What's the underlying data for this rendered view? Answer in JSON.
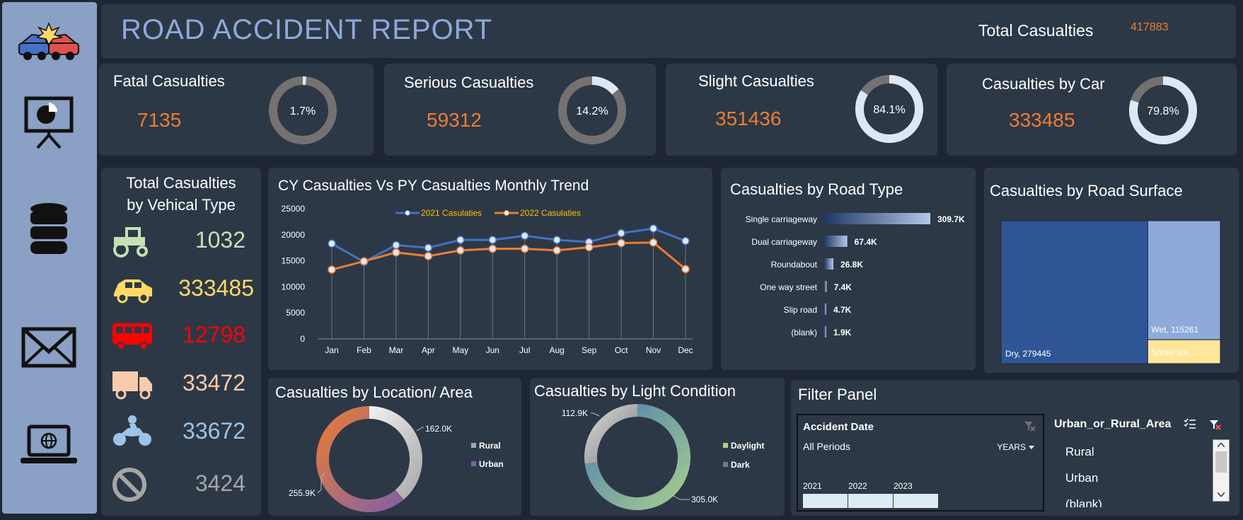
{
  "header": {
    "title": "ROAD ACCIDENT REPORT",
    "total_label": "Total Casualties",
    "total_value": "417883"
  },
  "kpis": [
    {
      "label": "Fatal Casualties",
      "value": "7135",
      "pct_label": "1.7%",
      "pct": 0.017
    },
    {
      "label": "Serious Casualties",
      "value": "59312",
      "pct_label": "14.2%",
      "pct": 0.142
    },
    {
      "label": "Slight Casualties",
      "value": "351436",
      "pct_label": "84.1%",
      "pct": 0.841
    },
    {
      "label": "Casualties by Car",
      "value": "333485",
      "pct_label": "79.8%",
      "pct": 0.798
    }
  ],
  "vehicle": {
    "title_line1": "Total Casualties",
    "title_line2": "by Vehical Type",
    "items": [
      {
        "icon": "tractor-icon",
        "value": "1032",
        "color": "#c5e0b4"
      },
      {
        "icon": "car-icon",
        "value": "333485",
        "color": "#ffd966"
      },
      {
        "icon": "bus-icon",
        "value": "12798",
        "color": "#ff0000"
      },
      {
        "icon": "van-icon",
        "value": "33472",
        "color": "#f8cbad"
      },
      {
        "icon": "motorcycle-icon",
        "value": "33672",
        "color": "#9dc3e6"
      },
      {
        "icon": "no-icon",
        "value": "3424",
        "color": "#a6a6a6"
      }
    ]
  },
  "chart_data": [
    {
      "type": "line",
      "title": "CY Casualties Vs PY Casualties Monthly Trend",
      "categories": [
        "Jan",
        "Feb",
        "Mar",
        "Apr",
        "May",
        "Jun",
        "Jul",
        "Aug",
        "Sep",
        "Oct",
        "Nov",
        "Dec"
      ],
      "series": [
        {
          "name": "2021 Casulaties",
          "color": "#4472c4",
          "values": [
            18300,
            14800,
            18000,
            17500,
            19000,
            19000,
            19800,
            19000,
            18600,
            20300,
            21200,
            18800
          ]
        },
        {
          "name": "2022 Casulaties",
          "color": "#ed7d31",
          "values": [
            13300,
            14900,
            16600,
            15900,
            17000,
            17300,
            17300,
            17000,
            17600,
            18400,
            18500,
            13400
          ]
        }
      ],
      "yticks": [
        "0",
        "5000",
        "10000",
        "15000",
        "20000",
        "25000"
      ],
      "ylim": [
        0,
        25000
      ],
      "legend": "top"
    },
    {
      "type": "bar",
      "title": "Casualties by Road Type",
      "categories": [
        "Single carriageway",
        "Dual carriageway",
        "Roundabout",
        "One way street",
        "Slip road",
        "(blank)"
      ],
      "values": [
        309.7,
        67.4,
        26.8,
        7.4,
        4.7,
        1.9
      ],
      "labels": [
        "309.7K",
        "67.4K",
        "26.8K",
        "7.4K",
        "4.7K",
        "1.9K"
      ],
      "orientation": "horizontal"
    },
    {
      "type": "treemap",
      "title": "Casualties by Road Surface",
      "items": [
        {
          "label": "Dry, 279445",
          "value": 279445,
          "color": "#2f5597"
        },
        {
          "label": "Wet, 115261",
          "value": 115261,
          "color": "#8eaadb"
        },
        {
          "label": "Snow/ Ice,...",
          "value": 23177,
          "color": "#ffe699"
        }
      ]
    },
    {
      "type": "pie",
      "title": "Casualties by Location/ Area",
      "slices": [
        {
          "name": "Rural",
          "value": 162.0,
          "label": "162.0K"
        },
        {
          "name": "Urban",
          "value": 255.9,
          "label": "255.9K"
        }
      ],
      "legend": "right"
    },
    {
      "type": "pie",
      "title": "Casualties by Light Condition",
      "slices": [
        {
          "name": "Daylight",
          "value": 305.0,
          "label": "305.0K"
        },
        {
          "name": "Dark",
          "value": 112.9,
          "label": "112.9K"
        }
      ],
      "legend": "right"
    }
  ],
  "filter": {
    "title": "Filter Panel",
    "date": {
      "title": "Accident Date",
      "period": "All Periods",
      "unit": "YEARS",
      "years": [
        "2021",
        "2022",
        "2023"
      ]
    },
    "area": {
      "title": "Urban_or_Rural_Area",
      "items": [
        "Rural",
        "Urban",
        "(blank)"
      ]
    }
  }
}
